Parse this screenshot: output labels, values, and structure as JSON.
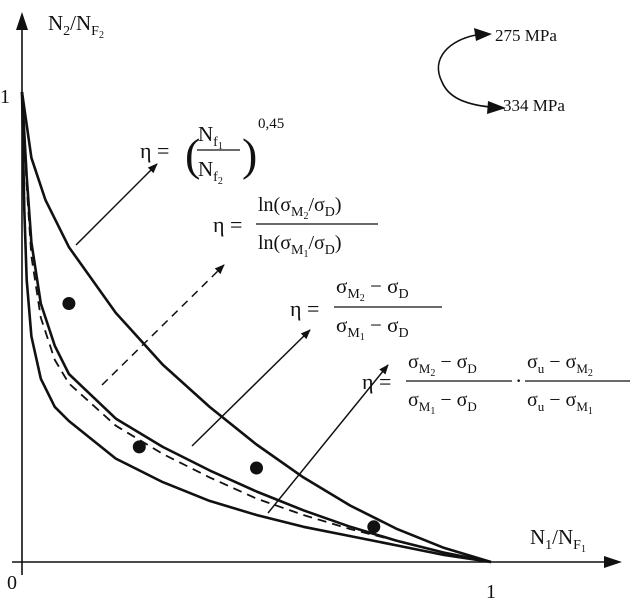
{
  "chart_data": {
    "type": "line",
    "xlabel": {
      "main": "N",
      "sub1": "1",
      "sep": "/N",
      "sub2": "F",
      "sub3": "1"
    },
    "ylabel": {
      "main": "N",
      "sub1": "2",
      "sep": "/N",
      "sub2": "F",
      "sub3": "2"
    },
    "xlim": [
      0,
      1
    ],
    "ylim": [
      0,
      1
    ],
    "origin_label": "0",
    "x_tick_label": "1",
    "y_tick_label": "1",
    "grid": false,
    "load_sequence": {
      "high": "275 MPa",
      "low": "334 MPa"
    },
    "series": [
      {
        "style": "solid",
        "exponent": 0.45,
        "points": [
          [
            0,
            1
          ],
          [
            0.02,
            0.86
          ],
          [
            0.05,
            0.77
          ],
          [
            0.1,
            0.67
          ],
          [
            0.2,
            0.53
          ],
          [
            0.3,
            0.42
          ],
          [
            0.4,
            0.33
          ],
          [
            0.5,
            0.25
          ],
          [
            0.6,
            0.18
          ],
          [
            0.7,
            0.12
          ],
          [
            0.8,
            0.07
          ],
          [
            0.9,
            0.03
          ],
          [
            1,
            0
          ]
        ]
      },
      {
        "style": "dashed",
        "points": [
          [
            0,
            1
          ],
          [
            0.01,
            0.8
          ],
          [
            0.02,
            0.65
          ],
          [
            0.04,
            0.52
          ],
          [
            0.07,
            0.43
          ],
          [
            0.1,
            0.38
          ],
          [
            0.2,
            0.29
          ],
          [
            0.3,
            0.23
          ],
          [
            0.4,
            0.18
          ],
          [
            0.5,
            0.135
          ],
          [
            0.6,
            0.1
          ],
          [
            0.7,
            0.07
          ],
          [
            0.8,
            0.045
          ],
          [
            0.9,
            0.02
          ],
          [
            1,
            0
          ]
        ]
      },
      {
        "style": "solid",
        "points": [
          [
            0,
            1
          ],
          [
            0.01,
            0.82
          ],
          [
            0.02,
            0.68
          ],
          [
            0.04,
            0.55
          ],
          [
            0.07,
            0.46
          ],
          [
            0.1,
            0.4
          ],
          [
            0.2,
            0.305
          ],
          [
            0.3,
            0.245
          ],
          [
            0.4,
            0.195
          ],
          [
            0.5,
            0.15
          ],
          [
            0.6,
            0.11
          ],
          [
            0.7,
            0.075
          ],
          [
            0.8,
            0.045
          ],
          [
            0.9,
            0.02
          ],
          [
            1,
            0
          ]
        ]
      },
      {
        "style": "solid",
        "points": [
          [
            0,
            1
          ],
          [
            0.005,
            0.75
          ],
          [
            0.01,
            0.6
          ],
          [
            0.02,
            0.48
          ],
          [
            0.04,
            0.39
          ],
          [
            0.07,
            0.33
          ],
          [
            0.1,
            0.3
          ],
          [
            0.2,
            0.22
          ],
          [
            0.3,
            0.17
          ],
          [
            0.4,
            0.13
          ],
          [
            0.5,
            0.1
          ],
          [
            0.6,
            0.075
          ],
          [
            0.7,
            0.055
          ],
          [
            0.8,
            0.035
          ],
          [
            0.9,
            0.015
          ],
          [
            1,
            0
          ]
        ]
      }
    ],
    "experimental_points": [
      [
        0.1,
        0.55
      ],
      [
        0.25,
        0.245
      ],
      [
        0.5,
        0.2
      ],
      [
        0.75,
        0.075
      ]
    ],
    "formulas": {
      "f1": {
        "lhs": "η =",
        "num": "N",
        "num_sub": "f",
        "num_subsub": "1",
        "den": "N",
        "den_sub": "f",
        "den_subsub": "2",
        "exp": "0,45"
      },
      "f2": {
        "lhs": "η =",
        "num_a": "ln(σ",
        "num_b": "M",
        "num_c": "2",
        "num_d": "/σ",
        "num_e": "D",
        "num_f": ")",
        "den_a": "ln(σ",
        "den_b": "M",
        "den_c": "1",
        "den_d": "/σ",
        "den_e": "D",
        "den_f": ")"
      },
      "f3": {
        "lhs": "η =",
        "num_a": "σ",
        "num_b": "M",
        "num_c": "2",
        "num_d": " − σ",
        "num_e": "D",
        "den_a": "σ",
        "den_b": "M",
        "den_c": "1",
        "den_d": " − σ",
        "den_e": "D"
      },
      "f4": {
        "lhs": "η =",
        "dot": "·",
        "n1_a": "σ",
        "n1_b": "M",
        "n1_c": "2",
        "n1_d": " − σ",
        "n1_e": "D",
        "d1_a": "σ",
        "d1_b": "M",
        "d1_c": "1",
        "d1_d": " − σ",
        "d1_e": "D",
        "n2_a": "σ",
        "n2_b": "u",
        "n2_d": " − σ",
        "n2_e": "M",
        "n2_f": "2",
        "d2_a": "σ",
        "d2_b": "u",
        "d2_d": " − σ",
        "d2_e": "M",
        "d2_f": "1"
      }
    }
  }
}
